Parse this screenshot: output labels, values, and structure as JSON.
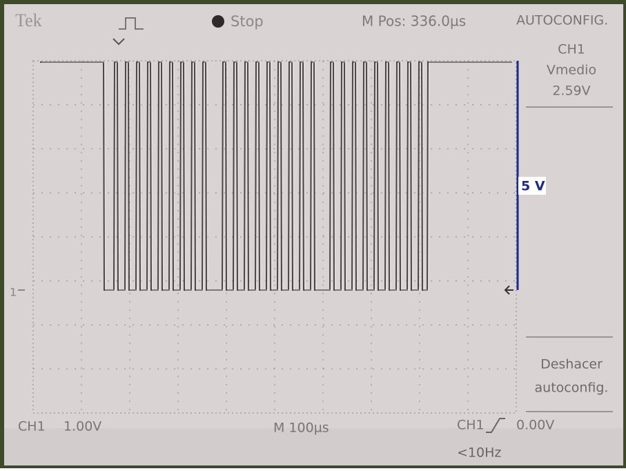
{
  "header": {
    "brand": "Tek",
    "status": "Stop",
    "position": "M Pos: 336.0µs",
    "menu_title": "AUTOCONFIG."
  },
  "side_menu": {
    "channel": "CH1",
    "measure_name": "Vmedio",
    "measure_value": "2.59V",
    "undo_line1": "Deshacer",
    "undo_line2": "autoconfig."
  },
  "scale_marker": "5 V",
  "ground_marker": "1",
  "footer": {
    "channel": "CH1",
    "volts_per_div": "1.00V",
    "time_per_div": "M 100µs",
    "trigger_channel": "CH1",
    "trigger_level": "0.00V",
    "frequency": "<10Hz"
  }
}
